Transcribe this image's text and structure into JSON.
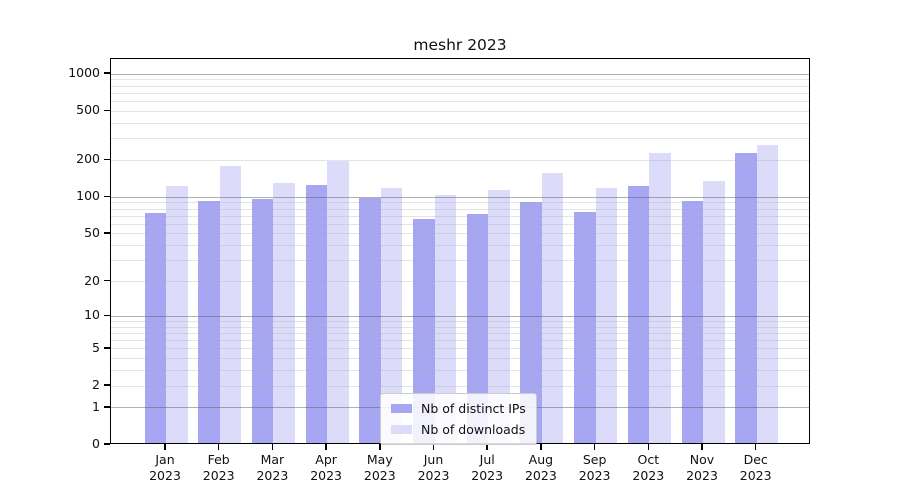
{
  "chart_data": {
    "type": "bar",
    "title": "meshr 2023",
    "categories": [
      "Jan",
      "Feb",
      "Mar",
      "Apr",
      "May",
      "Jun",
      "Jul",
      "Aug",
      "Sep",
      "Oct",
      "Nov",
      "Dec"
    ],
    "year_label": "2023",
    "series": [
      {
        "name": "Nb of distinct IPs",
        "color": "#a6a6f2",
        "values": [
          72,
          90,
          93,
          121,
          95,
          64,
          70,
          88,
          73,
          118,
          90,
          220
        ]
      },
      {
        "name": "Nb of downloads",
        "color": "#dcdcfa",
        "values": [
          118,
          174,
          125,
          190,
          114,
          101,
          110,
          151,
          115,
          222,
          130,
          258
        ]
      }
    ],
    "xlabel": "",
    "ylabel": "",
    "yscale": "symlog (log10 of 1+value)",
    "ytick_labels": [
      "0",
      "1",
      "2",
      "5",
      "10",
      "20",
      "50",
      "100",
      "200",
      "500",
      "1000"
    ],
    "yticks": [
      0,
      1,
      2,
      5,
      10,
      20,
      50,
      100,
      200,
      500,
      1000
    ],
    "minor_grid_values": [
      2,
      3,
      4,
      5,
      6,
      7,
      8,
      9,
      20,
      30,
      40,
      50,
      60,
      70,
      80,
      90,
      200,
      300,
      400,
      500,
      600,
      700,
      800,
      900
    ],
    "major_grid_values": [
      1,
      10,
      100,
      1000
    ],
    "ylim": [
      0,
      1300
    ],
    "grid": "both, horizontal only, drawn over bars",
    "legend_position": "lower center inside plot",
    "legend_entries": [
      "Nb of distinct IPs",
      "Nb of downloads"
    ]
  },
  "colors": {
    "distinct_ips_bar": "#a6a6f2",
    "downloads_bar": "#dcdcfa",
    "major_grid": "#b3b3b3",
    "minor_grid": "#e7e7e7",
    "axis": "#000000",
    "background": "#ffffff"
  }
}
